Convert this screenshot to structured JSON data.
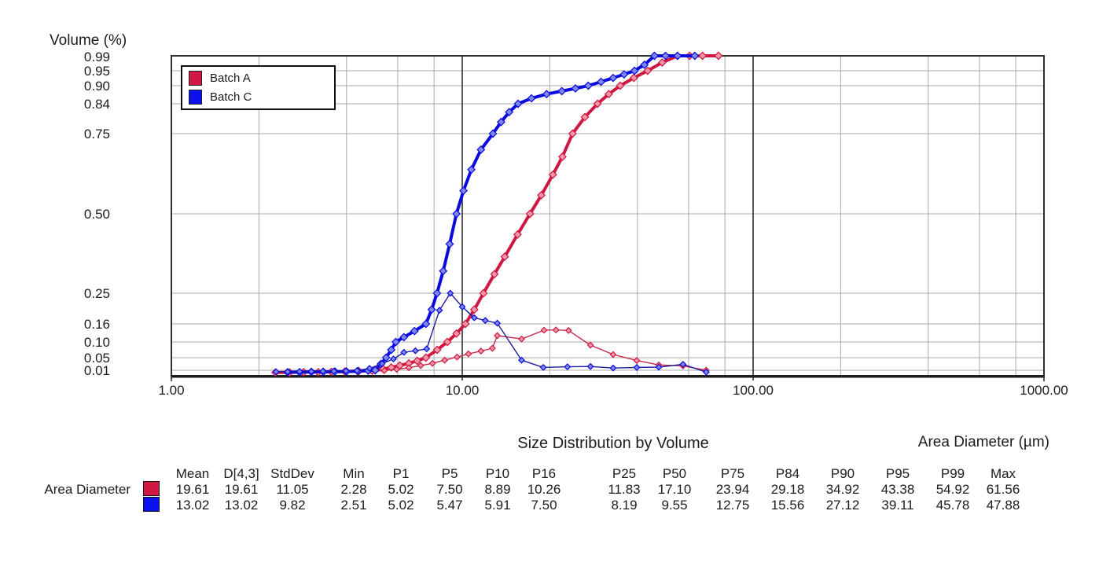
{
  "chart": {
    "title": "Size Distribution by Volume",
    "y_axis_title": "Volume (%)",
    "x_axis_title": "Area Diameter (µm)",
    "y_ticks": [
      {
        "label": "0.99",
        "v": 0.99
      },
      {
        "label": "0.95",
        "v": 0.95
      },
      {
        "label": "0.90",
        "v": 0.9
      },
      {
        "label": "0.84",
        "v": 0.84
      },
      {
        "label": "0.75",
        "v": 0.75
      },
      {
        "label": "0.50",
        "v": 0.5
      },
      {
        "label": "0.25",
        "v": 0.25
      },
      {
        "label": "0.16",
        "v": 0.16
      },
      {
        "label": "0.10",
        "v": 0.1
      },
      {
        "label": "0.05",
        "v": 0.05
      },
      {
        "label": "0.01",
        "v": 0.01
      }
    ],
    "x_ticks": [
      {
        "label": "1.00",
        "d": 1
      },
      {
        "label": "10.00",
        "d": 10
      },
      {
        "label": "100.00",
        "d": 100
      },
      {
        "label": "1000.00",
        "d": 1000
      }
    ],
    "legend": [
      {
        "label": "Batch A",
        "color": "#d21744"
      },
      {
        "label": "Batch C",
        "color": "#0a10ee"
      }
    ],
    "colors": {
      "red_line": "#cf1741",
      "red_marker_fill": "#f096a6",
      "red_freq_line": "#c62a4a",
      "blue_line": "#0a0ae0",
      "blue_marker_fill": "#7d88ea",
      "blue_freq_line": "#1b1b9e",
      "grid_minor": "#a9a9a9",
      "grid_major": "#2f2f2f"
    }
  },
  "chart_data": {
    "type": "line",
    "title": "Size Distribution by Volume",
    "xlabel": "Area Diameter (µm)",
    "ylabel": "Volume (%)",
    "x_scale": "log",
    "x_range": [
      1,
      1000
    ],
    "y_scale": "probability",
    "y_ticks": [
      0.01,
      0.05,
      0.1,
      0.16,
      0.25,
      0.5,
      0.75,
      0.84,
      0.9,
      0.95,
      0.99
    ],
    "grid": true,
    "legend_position": "top-left",
    "series": [
      {
        "name": "Batch A cumulative",
        "style": "thick",
        "points": [
          [
            2.28,
            0.003
          ],
          [
            2.55,
            0.003
          ],
          [
            2.85,
            0.004
          ],
          [
            3.2,
            0.004
          ],
          [
            3.55,
            0.005
          ],
          [
            3.95,
            0.006
          ],
          [
            4.4,
            0.008
          ],
          [
            4.75,
            0.009
          ],
          [
            5.02,
            0.01
          ],
          [
            5.35,
            0.014
          ],
          [
            5.7,
            0.019
          ],
          [
            6.1,
            0.025
          ],
          [
            6.55,
            0.032
          ],
          [
            7.0,
            0.04
          ],
          [
            7.5,
            0.05
          ],
          [
            8.2,
            0.075
          ],
          [
            8.89,
            0.1
          ],
          [
            9.55,
            0.128
          ],
          [
            10.26,
            0.16
          ],
          [
            11.0,
            0.202
          ],
          [
            11.83,
            0.25
          ],
          [
            12.9,
            0.31
          ],
          [
            14.0,
            0.365
          ],
          [
            15.5,
            0.435
          ],
          [
            17.1,
            0.5
          ],
          [
            18.7,
            0.558
          ],
          [
            20.5,
            0.622
          ],
          [
            22.1,
            0.678
          ],
          [
            23.94,
            0.75
          ],
          [
            26.4,
            0.8
          ],
          [
            29.18,
            0.84
          ],
          [
            31.9,
            0.872
          ],
          [
            34.92,
            0.9
          ],
          [
            38.9,
            0.926
          ],
          [
            43.38,
            0.95
          ],
          [
            48.7,
            0.972
          ],
          [
            54.92,
            0.99
          ],
          [
            60.5,
            0.993
          ],
          [
            67,
            0.995
          ],
          [
            76,
            0.996
          ]
        ]
      },
      {
        "name": "Batch A frequency",
        "style": "thin",
        "points": [
          [
            4.4,
            0.004
          ],
          [
            4.9,
            0.006
          ],
          [
            5.4,
            0.009
          ],
          [
            5.95,
            0.013
          ],
          [
            6.55,
            0.018
          ],
          [
            7.2,
            0.025
          ],
          [
            7.9,
            0.032
          ],
          [
            8.7,
            0.042
          ],
          [
            9.6,
            0.052
          ],
          [
            10.5,
            0.062
          ],
          [
            11.6,
            0.071
          ],
          [
            12.7,
            0.08
          ],
          [
            13.2,
            0.121
          ],
          [
            16.0,
            0.11
          ],
          [
            19.1,
            0.139
          ],
          [
            21.0,
            0.14
          ],
          [
            23.2,
            0.138
          ],
          [
            27.6,
            0.09
          ],
          [
            33.0,
            0.06
          ],
          [
            39.8,
            0.041
          ],
          [
            47.4,
            0.027
          ],
          [
            57.4,
            0.024
          ],
          [
            69.0,
            0.01
          ]
        ]
      },
      {
        "name": "Batch C cumulative",
        "style": "thick",
        "points": [
          [
            2.51,
            0.004
          ],
          [
            2.76,
            0.004
          ],
          [
            3.03,
            0.005
          ],
          [
            3.33,
            0.005
          ],
          [
            3.65,
            0.006
          ],
          [
            4.0,
            0.006
          ],
          [
            4.37,
            0.007
          ],
          [
            4.75,
            0.009
          ],
          [
            5.02,
            0.01
          ],
          [
            5.25,
            0.03
          ],
          [
            5.47,
            0.05
          ],
          [
            5.7,
            0.075
          ],
          [
            5.91,
            0.1
          ],
          [
            6.3,
            0.116
          ],
          [
            6.85,
            0.136
          ],
          [
            7.5,
            0.16
          ],
          [
            7.85,
            0.202
          ],
          [
            8.19,
            0.25
          ],
          [
            8.6,
            0.32
          ],
          [
            9.05,
            0.405
          ],
          [
            9.55,
            0.5
          ],
          [
            10.1,
            0.572
          ],
          [
            10.75,
            0.638
          ],
          [
            11.6,
            0.7
          ],
          [
            12.75,
            0.75
          ],
          [
            13.6,
            0.785
          ],
          [
            14.5,
            0.815
          ],
          [
            15.56,
            0.84
          ],
          [
            17.3,
            0.858
          ],
          [
            19.5,
            0.872
          ],
          [
            22.0,
            0.882
          ],
          [
            24.5,
            0.891
          ],
          [
            27.12,
            0.9
          ],
          [
            30.0,
            0.913
          ],
          [
            33.0,
            0.926
          ],
          [
            36.0,
            0.938
          ],
          [
            39.11,
            0.95
          ],
          [
            42.3,
            0.966
          ],
          [
            45.78,
            0.99
          ],
          [
            50.0,
            0.992
          ],
          [
            55.0,
            0.993
          ],
          [
            63.0,
            0.994
          ]
        ]
      },
      {
        "name": "Batch C frequency",
        "style": "thin",
        "points": [
          [
            2.29,
            0.005
          ],
          [
            2.51,
            0.005
          ],
          [
            2.76,
            0.006
          ],
          [
            3.03,
            0.006
          ],
          [
            3.32,
            0.007
          ],
          [
            3.62,
            0.007
          ],
          [
            3.98,
            0.008
          ],
          [
            4.35,
            0.009
          ],
          [
            4.8,
            0.016
          ],
          [
            5.3,
            0.031
          ],
          [
            5.8,
            0.046
          ],
          [
            6.3,
            0.067
          ],
          [
            6.9,
            0.072
          ],
          [
            7.55,
            0.078
          ],
          [
            8.35,
            0.2
          ],
          [
            9.1,
            0.25
          ],
          [
            10.0,
            0.21
          ],
          [
            11.0,
            0.178
          ],
          [
            12.0,
            0.17
          ],
          [
            13.2,
            0.162
          ],
          [
            16.0,
            0.042
          ],
          [
            19.0,
            0.019
          ],
          [
            23.0,
            0.021
          ],
          [
            27.6,
            0.022
          ],
          [
            33.0,
            0.017
          ],
          [
            39.8,
            0.019
          ],
          [
            47.4,
            0.02
          ],
          [
            57.4,
            0.029
          ],
          [
            69.0,
            0.004
          ]
        ]
      }
    ]
  },
  "table": {
    "row_label": "Area Diameter",
    "columns": [
      "Mean",
      "D[4,3]",
      "StdDev",
      "Min",
      "P1",
      "P5",
      "P10",
      "P16",
      "P25",
      "P50",
      "P75",
      "P84",
      "P90",
      "P95",
      "P99",
      "Max"
    ],
    "rows": [
      {
        "series": "Batch A",
        "color": "#d21744",
        "values": [
          "19.61",
          "19.61",
          "11.05",
          "2.28",
          "5.02",
          "7.50",
          "8.89",
          "10.26",
          "11.83",
          "17.10",
          "23.94",
          "29.18",
          "34.92",
          "43.38",
          "54.92",
          "61.56"
        ]
      },
      {
        "series": "Batch C",
        "color": "#0a10ee",
        "values": [
          "13.02",
          "13.02",
          "9.82",
          "2.51",
          "5.02",
          "5.47",
          "5.91",
          "7.50",
          "8.19",
          "9.55",
          "12.75",
          "15.56",
          "27.12",
          "39.11",
          "45.78",
          "47.88"
        ]
      }
    ]
  }
}
